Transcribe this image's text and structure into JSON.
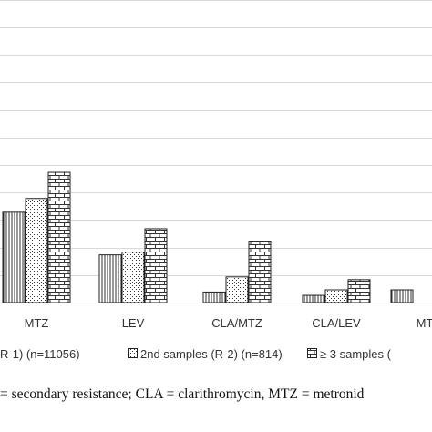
{
  "chart_data": {
    "type": "bar",
    "categories": [
      "MTZ",
      "LEV",
      "CLA/MTZ",
      "CLA/LEV",
      "MT"
    ],
    "series": [
      {
        "name": "R-1) (n=11056)",
        "pattern": "vertical-lines",
        "values": [
          33,
          17.5,
          4,
          2.8,
          0
        ]
      },
      {
        "name": "2nd samples (R-2) (n=814)",
        "pattern": "dots",
        "values": [
          38,
          18.5,
          9.5,
          4.8,
          0
        ]
      },
      {
        "name": "≥ 3 samples (",
        "pattern": "bricks",
        "values": [
          47.5,
          27,
          22.5,
          8.5,
          0
        ]
      }
    ],
    "partial_bars": {
      "MT": 4.8
    },
    "ylim": [
      0,
      110
    ],
    "grid": true,
    "gridline_values": [
      0,
      10,
      20,
      30,
      40,
      50,
      60,
      70,
      80,
      90,
      100,
      110
    ],
    "legend_position": "bottom"
  },
  "caption": {
    "text": "= secondary resistance; CLA = clarithromycin, MTZ = metronid"
  },
  "colors": {
    "grid": "#d9d9d9",
    "bar_stroke": "#222222",
    "pattern_ink": "#333333"
  }
}
